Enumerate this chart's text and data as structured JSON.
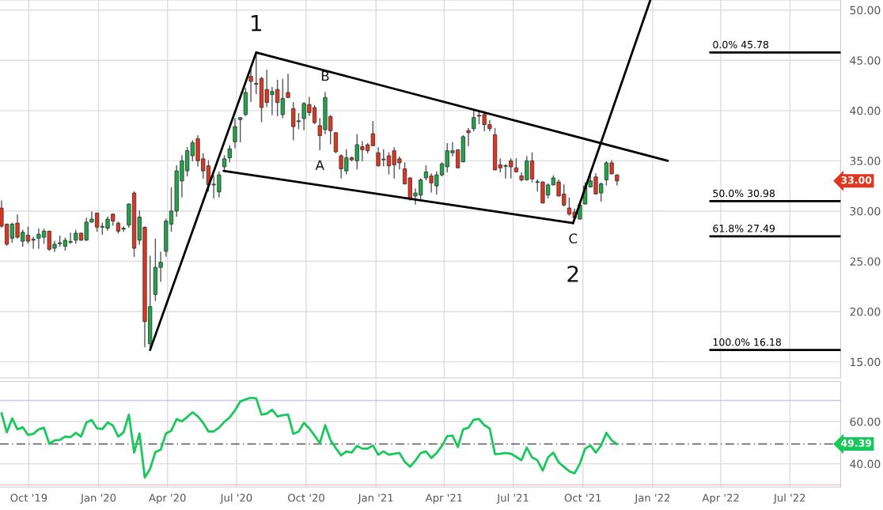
{
  "chart_data": [
    {
      "type": "candlestick",
      "x": [
        "2019-08-26",
        "2019-09-02",
        "2019-09-09",
        "2019-09-16",
        "2019-09-23",
        "2019-09-30",
        "2019-10-07",
        "2019-10-14",
        "2019-10-21",
        "2019-10-28",
        "2019-11-04",
        "2019-11-11",
        "2019-11-18",
        "2019-11-25",
        "2019-12-02",
        "2019-12-09",
        "2019-12-16",
        "2019-12-23",
        "2019-12-30",
        "2020-01-06",
        "2020-01-13",
        "2020-01-20",
        "2020-01-27",
        "2020-02-03",
        "2020-02-10",
        "2020-02-17",
        "2020-02-24",
        "2020-03-02",
        "2020-03-09",
        "2020-03-16",
        "2020-03-23",
        "2020-03-30",
        "2020-04-06",
        "2020-04-13",
        "2020-04-20",
        "2020-04-27",
        "2020-05-04",
        "2020-05-11",
        "2020-05-18",
        "2020-05-25",
        "2020-06-01",
        "2020-06-08",
        "2020-06-15",
        "2020-06-22",
        "2020-06-29",
        "2020-07-06",
        "2020-07-13",
        "2020-07-20",
        "2020-07-27",
        "2020-08-03",
        "2020-08-10",
        "2020-08-17",
        "2020-08-24",
        "2020-08-31",
        "2020-09-07",
        "2020-09-14",
        "2020-09-21",
        "2020-09-28",
        "2020-10-05",
        "2020-10-12",
        "2020-10-19",
        "2020-10-26",
        "2020-11-02",
        "2020-11-09",
        "2020-11-16",
        "2020-11-23",
        "2020-11-30",
        "2020-12-07",
        "2020-12-14",
        "2020-12-21",
        "2020-12-28",
        "2021-01-04",
        "2021-01-11",
        "2021-01-18",
        "2021-01-25",
        "2021-02-01",
        "2021-02-08",
        "2021-02-15",
        "2021-02-22",
        "2021-03-01",
        "2021-03-08",
        "2021-03-15",
        "2021-03-22",
        "2021-03-29",
        "2021-04-05",
        "2021-04-12",
        "2021-04-19",
        "2021-04-26",
        "2021-05-03",
        "2021-05-10",
        "2021-05-17",
        "2021-05-24",
        "2021-05-31",
        "2021-06-07",
        "2021-06-14",
        "2021-06-21",
        "2021-06-28",
        "2021-07-05",
        "2021-07-12",
        "2021-07-19",
        "2021-07-26",
        "2021-08-02",
        "2021-08-09",
        "2021-08-16",
        "2021-08-23",
        "2021-08-30",
        "2021-09-06",
        "2021-09-13",
        "2021-09-20",
        "2021-09-27",
        "2021-10-04",
        "2021-10-11",
        "2021-10-18",
        "2021-10-25",
        "2021-11-01",
        "2021-11-08",
        "2021-11-15"
      ],
      "ohlc": [
        [
          30.3,
          31.0,
          28.4,
          28.5
        ],
        [
          28.7,
          28.7,
          26.6,
          26.7
        ],
        [
          27.3,
          28.8,
          26.9,
          28.7
        ],
        [
          28.8,
          29.6,
          27.3,
          27.4
        ],
        [
          27.0,
          28.1,
          26.5,
          27.9
        ],
        [
          27.6,
          28.4,
          26.8,
          27.0
        ],
        [
          27.1,
          27.4,
          26.3,
          27.2
        ],
        [
          27.3,
          28.2,
          26.3,
          27.7
        ],
        [
          27.4,
          28.2,
          26.8,
          28.0
        ],
        [
          28.0,
          28.0,
          26.1,
          26.2
        ],
        [
          26.3,
          27.0,
          26.0,
          26.7
        ],
        [
          26.75,
          27.5,
          26.5,
          26.85
        ],
        [
          26.5,
          27.3,
          26.1,
          27.1
        ],
        [
          26.9,
          27.8,
          26.8,
          26.95
        ],
        [
          27.1,
          28.1,
          26.8,
          27.8
        ],
        [
          27.8,
          27.8,
          27.1,
          27.1
        ],
        [
          27.1,
          29.3,
          27.1,
          28.9
        ],
        [
          28.9,
          29.9,
          28.9,
          29.2
        ],
        [
          29.8,
          29.8,
          28.0,
          28.4
        ],
        [
          28.4,
          28.8,
          27.7,
          28.45
        ],
        [
          28.3,
          29.4,
          28.1,
          29.2
        ],
        [
          29.7,
          29.7,
          28.6,
          29.0
        ],
        [
          28.8,
          28.9,
          27.8,
          28.0
        ],
        [
          28.2,
          28.4,
          28.0,
          28.3
        ],
        [
          28.6,
          30.7,
          28.4,
          30.7
        ],
        [
          31.8,
          31.9,
          25.5,
          26.3
        ],
        [
          27.1,
          30.0,
          26.7,
          29.4
        ],
        [
          28.4,
          28.4,
          16.5,
          19.0
        ],
        [
          16.8,
          25.5,
          16.18,
          20.5
        ],
        [
          21.7,
          27.2,
          21.1,
          24.4
        ],
        [
          24.4,
          25.9,
          23.0,
          24.9
        ],
        [
          26.0,
          29.2,
          25.5,
          29.0
        ],
        [
          28.7,
          32.3,
          28.0,
          30.0
        ],
        [
          30.0,
          34.5,
          29.5,
          34.0
        ],
        [
          33.0,
          35.5,
          31.4,
          35.0
        ],
        [
          34.0,
          36.3,
          33.5,
          36.0
        ],
        [
          35.5,
          37.0,
          35.0,
          36.8
        ],
        [
          37.2,
          37.5,
          34.5,
          35.0
        ],
        [
          35.2,
          35.7,
          33.3,
          34.0
        ],
        [
          34.5,
          35.0,
          32.0,
          32.6
        ],
        [
          32.6,
          33.5,
          31.3,
          32.65
        ],
        [
          31.9,
          33.9,
          31.4,
          33.6
        ],
        [
          34.4,
          35.5,
          34.1,
          35.2
        ],
        [
          35.3,
          36.5,
          34.9,
          36.2
        ],
        [
          36.9,
          39.2,
          36.3,
          38.4
        ],
        [
          39.1,
          39.3,
          36.9,
          39.3
        ],
        [
          39.6,
          42.2,
          39.5,
          41.8
        ],
        [
          43.4,
          44.2,
          40.9,
          42.9
        ],
        [
          42.6,
          45.78,
          41.7,
          42.7
        ],
        [
          43.2,
          43.3,
          38.9,
          40.3
        ],
        [
          42.1,
          44.0,
          40.4,
          40.8
        ],
        [
          41.6,
          42.3,
          39.6,
          41.9
        ],
        [
          42.1,
          43.0,
          39.5,
          40.8
        ],
        [
          39.6,
          43.1,
          39.3,
          41.2
        ],
        [
          41.8,
          43.6,
          41.3,
          41.3
        ],
        [
          40.2,
          40.8,
          37.1,
          38.4
        ],
        [
          38.9,
          39.7,
          38.2,
          38.95
        ],
        [
          39.2,
          40.8,
          38.1,
          40.7
        ],
        [
          40.6,
          41.3,
          39.5,
          39.8
        ],
        [
          40.3,
          40.5,
          38.7,
          38.8
        ],
        [
          38.5,
          39.2,
          36.1,
          37.5
        ],
        [
          38.1,
          41.8,
          37.7,
          41.3
        ],
        [
          39.4,
          39.5,
          36.7,
          38.0
        ],
        [
          37.8,
          37.8,
          35.8,
          35.9
        ],
        [
          35.5,
          35.6,
          33.3,
          34.2
        ],
        [
          34.0,
          36.1,
          33.7,
          35.3
        ],
        [
          35.3,
          35.4,
          35.0,
          35.1
        ],
        [
          35.0,
          37.6,
          34.2,
          36.6
        ],
        [
          36.4,
          36.9,
          35.0,
          36.1
        ],
        [
          36.6,
          36.7,
          35.8,
          36.0
        ],
        [
          37.7,
          38.9,
          36.5,
          36.5
        ],
        [
          35.8,
          36.3,
          34.5,
          34.5
        ],
        [
          35.1,
          36.1,
          34.5,
          35.15
        ],
        [
          35.5,
          35.8,
          33.7,
          34.5
        ],
        [
          36.0,
          36.3,
          33.3,
          34.6
        ],
        [
          35.2,
          35.4,
          34.2,
          34.8
        ],
        [
          34.2,
          34.8,
          32.7,
          32.7
        ],
        [
          33.3,
          33.3,
          31.1,
          31.2
        ],
        [
          31.5,
          32.2,
          30.7,
          31.8
        ],
        [
          31.6,
          33.2,
          31.2,
          33.1
        ],
        [
          33.3,
          34.5,
          33.1,
          33.9
        ],
        [
          33.5,
          33.7,
          31.9,
          32.8
        ],
        [
          32.5,
          33.9,
          31.7,
          33.6
        ],
        [
          33.6,
          34.8,
          33.5,
          34.7
        ],
        [
          34.4,
          36.7,
          33.9,
          36.0
        ],
        [
          35.8,
          36.8,
          35.5,
          36.0
        ],
        [
          36.1,
          36.1,
          34.3,
          34.3
        ],
        [
          34.9,
          37.5,
          34.9,
          37.4
        ],
        [
          38.0,
          38.2,
          36.5,
          37.8
        ],
        [
          38.2,
          40.0,
          38.0,
          39.3
        ],
        [
          39.45,
          39.9,
          38.7,
          39.5
        ],
        [
          39.6,
          39.9,
          38.0,
          38.6
        ],
        [
          38.6,
          39.0,
          38.0,
          38.2
        ],
        [
          37.6,
          38.2,
          34.1,
          34.1
        ],
        [
          34.6,
          35.2,
          33.9,
          34.3
        ],
        [
          34.45,
          34.6,
          33.3,
          34.5
        ],
        [
          35.0,
          35.2,
          33.3,
          34.4
        ],
        [
          34.3,
          35.2,
          33.9,
          33.9
        ],
        [
          33.5,
          33.8,
          33.0,
          33.1
        ],
        [
          33.1,
          35.4,
          33.1,
          35.0
        ],
        [
          35.0,
          35.8,
          32.9,
          33.2
        ],
        [
          32.85,
          33.1,
          32.0,
          32.9
        ],
        [
          32.9,
          32.9,
          30.8,
          30.8
        ],
        [
          31.6,
          32.7,
          31.3,
          32.6
        ],
        [
          32.6,
          33.5,
          32.6,
          33.3
        ],
        [
          32.9,
          33.1,
          31.5,
          31.5
        ],
        [
          31.7,
          32.6,
          30.5,
          30.6
        ],
        [
          30.3,
          31.3,
          29.6,
          29.7
        ],
        [
          29.9,
          30.2,
          29.2,
          29.35
        ],
        [
          29.2,
          30.9,
          29.2,
          30.6
        ],
        [
          30.7,
          32.8,
          30.7,
          32.5
        ],
        [
          32.4,
          33.9,
          32.4,
          33.0
        ],
        [
          33.4,
          33.7,
          31.7,
          31.7
        ],
        [
          31.8,
          32.8,
          31.0,
          32.7
        ],
        [
          33.1,
          34.9,
          32.6,
          34.8
        ],
        [
          34.8,
          35.0,
          33.7,
          33.7
        ],
        [
          33.6,
          33.6,
          32.6,
          33.0
        ]
      ],
      "series": [
        {
          "type": "line",
          "x": [
            "2020-03-09",
            "2020-07-27"
          ],
          "values": [
            16.18,
            45.78
          ],
          "color": "#000000"
        },
        {
          "type": "line",
          "x": [
            "2020-07-27",
            "2022-01-21"
          ],
          "values": [
            45.78,
            35.0
          ],
          "color": "#000000"
        },
        {
          "type": "line",
          "x": [
            "2020-06-14",
            "2021-09-18"
          ],
          "values": [
            34.0,
            28.8
          ],
          "color": "#000000"
        },
        {
          "type": "line",
          "x": [
            "2021-09-18",
            "2021-12-29"
          ],
          "values": [
            28.8,
            51.0
          ],
          "color": "#000000"
        },
        {
          "type": "line",
          "name": "0.0% 45.78",
          "x": [
            "2022-03-18",
            "2022-09-06"
          ],
          "values": [
            45.78,
            45.78
          ],
          "color": "#000000"
        },
        {
          "type": "line",
          "name": "50.0% 30.98",
          "x": [
            "2022-03-18",
            "2022-09-06"
          ],
          "values": [
            30.98,
            30.98
          ],
          "color": "#000000"
        },
        {
          "type": "line",
          "name": "61.8% 27.49",
          "x": [
            "2022-03-18",
            "2022-09-06"
          ],
          "values": [
            27.49,
            27.49
          ],
          "color": "#000000"
        },
        {
          "type": "line",
          "name": "100.0% 16.18",
          "x": [
            "2022-03-18",
            "2022-09-06"
          ],
          "values": [
            16.18,
            16.18
          ],
          "color": "#000000"
        }
      ],
      "annotations": [
        {
          "text": "1",
          "x": "2020-07-27",
          "y": 45.78
        },
        {
          "text": "2",
          "x": "2021-09-18",
          "y": 28.8
        },
        {
          "text": "A",
          "x": "2020-10-19",
          "y": 36.1
        },
        {
          "text": "B",
          "x": "2020-10-26",
          "y": 41.8
        },
        {
          "text": "C",
          "x": "2021-09-18",
          "y": 28.8
        },
        "33.00"
      ],
      "xlim": [
        "2019-08-24",
        "2022-09-06"
      ],
      "xticks": [
        {
          "value": "2019-10-01",
          "label": null
        },
        {
          "value": "2020-01-01",
          "label": null
        },
        {
          "value": "2020-04-01",
          "label": null
        },
        {
          "value": "2020-07-01",
          "label": null
        },
        {
          "value": "2020-10-01",
          "label": null
        },
        {
          "value": "2021-01-01",
          "label": null
        },
        {
          "value": "2021-04-01",
          "label": null
        },
        {
          "value": "2021-07-01",
          "label": null
        },
        {
          "value": "2021-10-01",
          "label": null
        },
        {
          "value": "2022-01-01",
          "label": null
        },
        {
          "value": "2022-04-01",
          "label": null
        },
        {
          "value": "2022-07-01",
          "label": null
        }
      ],
      "ylim": [
        13.4,
        51.0
      ],
      "yticks": [
        {
          "value": 15,
          "label": "15.00"
        },
        {
          "value": 20,
          "label": "20.00"
        },
        {
          "value": 25,
          "label": "25.00"
        },
        {
          "value": 30,
          "label": "30.00"
        },
        {
          "value": 35,
          "label": "35.00"
        },
        {
          "value": 40,
          "label": "40.00"
        },
        {
          "value": 45,
          "label": "45.00"
        },
        {
          "value": 50,
          "label": "50.00"
        }
      ],
      "grid": true,
      "tick_labels": "y"
    },
    {
      "type": "line",
      "x": [
        "2019-08-26",
        "2019-09-02",
        "2019-09-09",
        "2019-09-16",
        "2019-09-23",
        "2019-09-30",
        "2019-10-07",
        "2019-10-14",
        "2019-10-21",
        "2019-10-28",
        "2019-11-04",
        "2019-11-11",
        "2019-11-18",
        "2019-11-25",
        "2019-12-02",
        "2019-12-09",
        "2019-12-16",
        "2019-12-23",
        "2019-12-30",
        "2020-01-06",
        "2020-01-13",
        "2020-01-20",
        "2020-01-27",
        "2020-02-03",
        "2020-02-10",
        "2020-02-17",
        "2020-02-24",
        "2020-03-02",
        "2020-03-09",
        "2020-03-16",
        "2020-03-23",
        "2020-03-30",
        "2020-04-06",
        "2020-04-13",
        "2020-04-20",
        "2020-04-27",
        "2020-05-04",
        "2020-05-11",
        "2020-05-18",
        "2020-05-25",
        "2020-06-01",
        "2020-06-08",
        "2020-06-15",
        "2020-06-22",
        "2020-06-29",
        "2020-07-06",
        "2020-07-13",
        "2020-07-20",
        "2020-07-27",
        "2020-08-03",
        "2020-08-10",
        "2020-08-17",
        "2020-08-24",
        "2020-08-31",
        "2020-09-07",
        "2020-09-14",
        "2020-09-21",
        "2020-09-28",
        "2020-10-05",
        "2020-10-12",
        "2020-10-19",
        "2020-10-26",
        "2020-11-02",
        "2020-11-09",
        "2020-11-16",
        "2020-11-23",
        "2020-11-30",
        "2020-12-07",
        "2020-12-14",
        "2020-12-21",
        "2020-12-28",
        "2021-01-04",
        "2021-01-11",
        "2021-01-18",
        "2021-01-25",
        "2021-02-01",
        "2021-02-08",
        "2021-02-15",
        "2021-02-22",
        "2021-03-01",
        "2021-03-08",
        "2021-03-15",
        "2021-03-22",
        "2021-03-29",
        "2021-04-05",
        "2021-04-12",
        "2021-04-19",
        "2021-04-26",
        "2021-05-03",
        "2021-05-10",
        "2021-05-17",
        "2021-05-24",
        "2021-05-31",
        "2021-06-07",
        "2021-06-14",
        "2021-06-21",
        "2021-06-28",
        "2021-07-05",
        "2021-07-12",
        "2021-07-19",
        "2021-07-26",
        "2021-08-02",
        "2021-08-09",
        "2021-08-16",
        "2021-08-23",
        "2021-08-30",
        "2021-09-06",
        "2021-09-13",
        "2021-09-20",
        "2021-09-27",
        "2021-10-04",
        "2021-10-11",
        "2021-10-18",
        "2021-10-25",
        "2021-11-01",
        "2021-11-08",
        "2021-11-15"
      ],
      "series": [
        {
          "color": "#17c85a",
          "values": [
            64.0,
            54.9,
            61.5,
            56.3,
            57.3,
            53.7,
            54.2,
            56.3,
            57.1,
            49.5,
            51.1,
            51.3,
            52.9,
            52.6,
            54.7,
            52.9,
            59.6,
            60.7,
            56.8,
            56.5,
            59.6,
            58.1,
            52.9,
            54.9,
            63.3,
            45.3,
            54.4,
            33.5,
            37.6,
            45.6,
            46.7,
            54.4,
            55.7,
            61.2,
            60.1,
            62.2,
            64.4,
            62.5,
            59.4,
            55.3,
            55.3,
            57.1,
            59.9,
            62.0,
            65.3,
            69.5,
            70.5,
            71.3,
            71.0,
            63.3,
            63.8,
            65.6,
            62.5,
            63.0,
            63.3,
            54.2,
            55.3,
            59.4,
            56.8,
            53.4,
            49.8,
            58.3,
            51.3,
            47.4,
            44.0,
            45.9,
            45.3,
            48.5,
            47.2,
            47.2,
            48.7,
            44.3,
            45.9,
            44.3,
            44.8,
            45.1,
            41.0,
            38.6,
            41.5,
            45.1,
            45.9,
            42.8,
            45.1,
            48.5,
            53.1,
            53.4,
            48.0,
            56.3,
            57.1,
            60.9,
            61.2,
            58.3,
            56.8,
            44.6,
            44.8,
            45.1,
            44.8,
            43.3,
            41.7,
            47.7,
            43.0,
            41.7,
            36.8,
            43.0,
            45.3,
            40.7,
            38.6,
            36.5,
            35.5,
            40.1,
            47.2,
            48.7,
            45.3,
            48.7,
            54.7,
            51.1,
            49.39
          ]
        }
      ],
      "ref_lines": [
        {
          "axis": "y",
          "value": 70,
          "color": "#c8c4f4",
          "line_style": "solid"
        },
        {
          "axis": "y",
          "value": 30,
          "color": "#f4c4c4",
          "line_style": "solid"
        },
        {
          "axis": "y",
          "value": 49.39,
          "label": "49.39",
          "color": "#555555",
          "line_style": "dashed"
        }
      ],
      "xlim": [
        "2019-08-24",
        "2022-09-06"
      ],
      "xticks": [
        {
          "value": "2019-10-01",
          "label": "Oct '19"
        },
        {
          "value": "2020-01-01",
          "label": "Jan '20"
        },
        {
          "value": "2020-04-01",
          "label": "Apr '20"
        },
        {
          "value": "2020-07-01",
          "label": "Jul '20"
        },
        {
          "value": "2020-10-01",
          "label": "Oct '20"
        },
        {
          "value": "2021-01-01",
          "label": "Jan '21"
        },
        {
          "value": "2021-04-01",
          "label": "Apr '21"
        },
        {
          "value": "2021-07-01",
          "label": "Jul '21"
        },
        {
          "value": "2021-10-01",
          "label": "Oct '21"
        },
        {
          "value": "2022-01-01",
          "label": "Jan '22"
        },
        {
          "value": "2022-04-01",
          "label": "Apr '22"
        },
        {
          "value": "2022-07-01",
          "label": "Jul '22"
        }
      ],
      "ylim": [
        29.0,
        79.0
      ],
      "yticks": [
        {
          "value": 40,
          "label": "40.00"
        },
        {
          "value": 60,
          "label": "60.00"
        }
      ],
      "grid": true
    }
  ]
}
